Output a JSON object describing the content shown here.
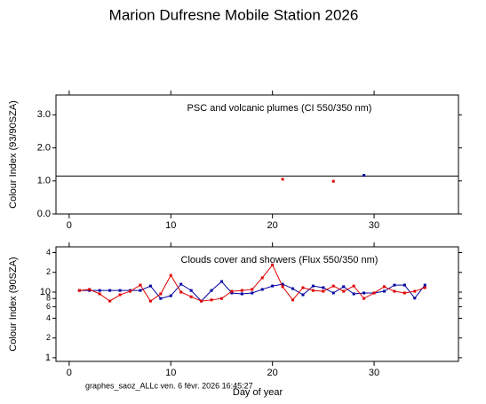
{
  "title": "Marion Dufresne  Mobile Station   2026",
  "footer": "graphes_saoz_ALLc  ven. 6 févr. 2026 16:45:27",
  "chart_data": [
    {
      "type": "scatter",
      "ylabel": "Colour Index (93/90SZA)",
      "annotation": "PSC and volcanic plumes (CI 550/350 nm)",
      "xlim": [
        -1.3,
        38.3
      ],
      "xticks": [
        0,
        10,
        20,
        30
      ],
      "ylim": [
        0,
        3.6
      ],
      "yticks": [
        {
          "value": 0,
          "label": "0.0"
        },
        {
          "value": 1,
          "label": "1.0"
        },
        {
          "value": 2,
          "label": "2.0"
        },
        {
          "value": 3,
          "label": "3.0"
        }
      ],
      "reference_line": 1.15,
      "series": [
        {
          "color": "#e00000",
          "x": [
            21,
            26
          ],
          "values": [
            1.05,
            0.99
          ]
        },
        {
          "color": "#0000a0",
          "x": [
            29
          ],
          "values": [
            1.17
          ]
        }
      ]
    },
    {
      "type": "line",
      "ylabel": "Colour Index (90SZA)",
      "xlabel": "Day of year",
      "annotation": "Clouds cover and showers (Flux 550/350 nm)",
      "log_y": true,
      "xlim": [
        -1.3,
        38.3
      ],
      "xticks": [
        0,
        10,
        20,
        30
      ],
      "ylim": [
        0.88,
        49
      ],
      "yticks": [
        1,
        2,
        4,
        6,
        8,
        10,
        {
          "value": 20,
          "label": "2"
        },
        {
          "value": 40,
          "label": "4"
        }
      ],
      "x": [
        1,
        2,
        3,
        4,
        5,
        6,
        7,
        8,
        9,
        10,
        11,
        12,
        13,
        14,
        15,
        16,
        17,
        18,
        19,
        20,
        21,
        22,
        23,
        24,
        25,
        26,
        27,
        28,
        29,
        30,
        31,
        32,
        33,
        34,
        35
      ],
      "series": [
        {
          "color": "#0000a0",
          "values": [
            10.6,
            10.6,
            10.6,
            10.6,
            10.6,
            10.6,
            10.6,
            12.4,
            8.0,
            8.8,
            13.2,
            10.6,
            7.3,
            10.6,
            14.5,
            9.7,
            9.4,
            9.7,
            11.0,
            12.4,
            13.2,
            11.3,
            9.1,
            12.4,
            11.7,
            9.7,
            12.1,
            9.4,
            9.7,
            9.7,
            10.3,
            12.8,
            12.8,
            8.1,
            12.8
          ]
        },
        {
          "color": "#e00000",
          "values": [
            10.6,
            11.0,
            9.4,
            7.3,
            9.1,
            10.3,
            12.8,
            7.3,
            9.4,
            18,
            10,
            8.5,
            7.3,
            7.6,
            8.0,
            10.3,
            10.6,
            11.0,
            16.5,
            26,
            12.1,
            7.6,
            11.7,
            10.6,
            10.3,
            12.4,
            10.3,
            12.4,
            8.0,
            9.7,
            12.1,
            10.3,
            9.7,
            10.3,
            11.7
          ]
        }
      ]
    }
  ]
}
